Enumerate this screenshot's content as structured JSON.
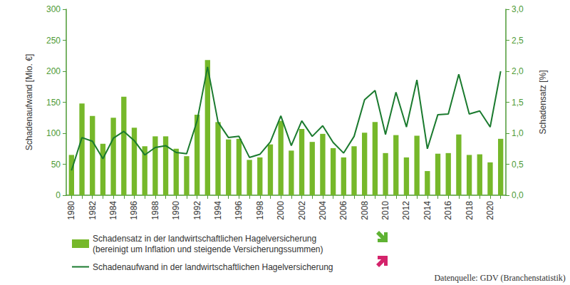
{
  "chart_data": {
    "type": "bar",
    "categories": [
      1980,
      null,
      1982,
      null,
      1984,
      null,
      1986,
      null,
      1988,
      null,
      1990,
      null,
      1992,
      null,
      1994,
      null,
      1996,
      null,
      1998,
      null,
      2000,
      null,
      2002,
      null,
      2004,
      null,
      2006,
      null,
      2008,
      null,
      2010,
      null,
      2012,
      null,
      2014,
      null,
      2016,
      null,
      2018,
      null,
      2020,
      null
    ],
    "y_label": "Schadenaufwand [Mio. €]",
    "y2_label": "Schadensatz [%]",
    "ylim": [
      0,
      300
    ],
    "yticks": [
      0,
      50,
      100,
      150,
      200,
      250,
      300
    ],
    "y2lim": [
      0,
      3
    ],
    "y2ticks": [
      {
        "value": 0,
        "label": "0,0"
      },
      {
        "value": 0.5,
        "label": "0,5"
      },
      {
        "value": 1,
        "label": "1,0"
      },
      {
        "value": 1.5,
        "label": "1,5"
      },
      {
        "value": 2,
        "label": "2,0"
      },
      {
        "value": 2.5,
        "label": "2,5"
      },
      {
        "value": 3,
        "label": "3,0"
      }
    ],
    "legend": "bottom",
    "source": "Datenquelle: GDV (Branchenstatistik)",
    "series": [
      {
        "name": "Schadensatz in der landwirtschaftlichen Hagelversicherung\n(bereinigt um Inflation und steigende Versicherungssummen)",
        "type": "bar",
        "color": "#76b82a",
        "axis": "y",
        "values": [
          65,
          148,
          128,
          83,
          125,
          159,
          109,
          79,
          95,
          95,
          75,
          63,
          130,
          218,
          118,
          90,
          91,
          57,
          61,
          82,
          120,
          72,
          107,
          86,
          99,
          76,
          61,
          79,
          101,
          118,
          68,
          97,
          61,
          96,
          39,
          67,
          68,
          98,
          65,
          66,
          53,
          91
        ]
      },
      {
        "name": "Schadenaufwand in der landwirtschaftlichen Hagelversicherung",
        "type": "line",
        "color": "#1a7a2e",
        "axis": "y2",
        "values": [
          0.4,
          0.93,
          0.87,
          0.59,
          0.92,
          1.03,
          0.88,
          0.65,
          0.77,
          0.8,
          0.69,
          0.67,
          1.2,
          2.07,
          1.18,
          0.93,
          0.95,
          0.61,
          0.66,
          0.86,
          1.28,
          0.8,
          1.2,
          0.95,
          1.12,
          0.85,
          0.68,
          0.95,
          1.54,
          1.69,
          0.98,
          1.66,
          1.1,
          1.86,
          0.75,
          1.3,
          1.31,
          1.95,
          1.31,
          1.36,
          1.1,
          2.0
        ]
      }
    ]
  }
}
